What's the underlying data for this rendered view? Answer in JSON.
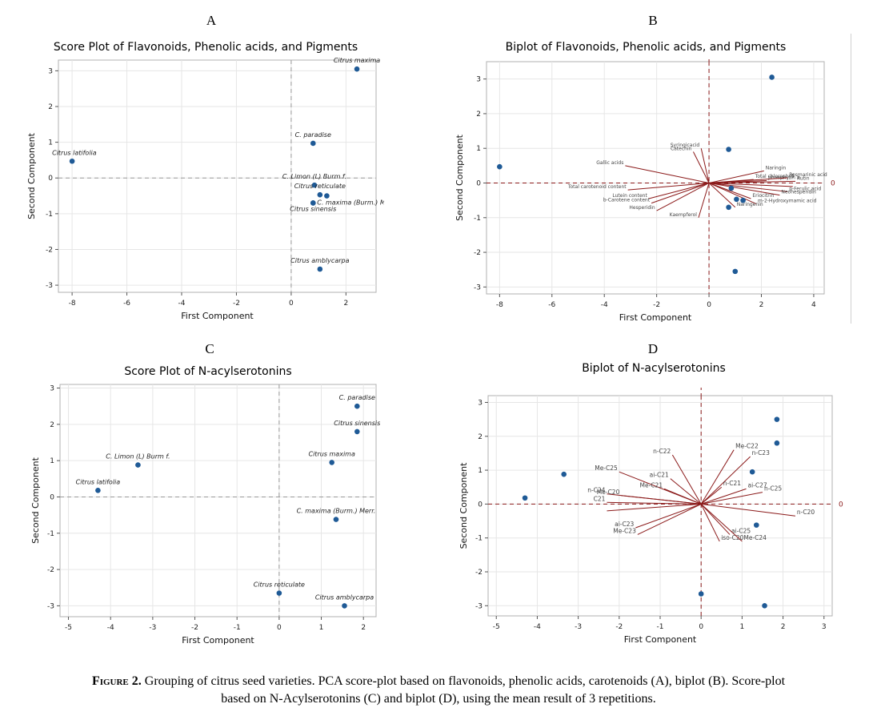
{
  "caption": {
    "label": "Figure 2.",
    "text_line1": " Grouping of citrus seed varieties. PCA score-plot based on flavonoids, phenolic acids, carotenoids (A), biplot (B). Score-plot",
    "text_line2": "based on N-Acylserotonins (C) and biplot (D), using the mean result of 3 repetitions."
  },
  "colors": {
    "point": "#1f5a96",
    "loading": "#8b1a1a",
    "refline": "#999999",
    "grid": "#e6e6e6"
  },
  "chart_data": [
    {
      "id": "A",
      "panel_letter": "A",
      "type": "scatter",
      "title": "Score Plot of Flavonoids, Phenolic acids, and Pigments",
      "xlabel": "First Component",
      "ylabel": "Second Component",
      "xlim": [
        -8.5,
        3.1
      ],
      "ylim": [
        -3.2,
        3.3
      ],
      "xticks": [
        -8,
        -6,
        -4,
        -2,
        0,
        2
      ],
      "yticks": [
        -3,
        -2,
        -1,
        0,
        1,
        2,
        3
      ],
      "grid": true,
      "refline_style": "dashed-gray",
      "points": [
        {
          "label": "Citrus maxima",
          "x": 2.4,
          "y": 3.05
        },
        {
          "label": "C. paradise",
          "x": 0.8,
          "y": 0.97
        },
        {
          "label": "Citrus latifolia",
          "x": -8.0,
          "y": 0.47
        },
        {
          "label": "C. Limon (L) Burm f.",
          "x": 0.85,
          "y": -0.2
        },
        {
          "label": "Citrus reticulate",
          "x": 1.05,
          "y": -0.47
        },
        {
          "label": "",
          "x": 1.3,
          "y": -0.5
        },
        {
          "label": "C. maxima (Burm.) Merr.",
          "x": 0.8,
          "y": -0.7
        },
        {
          "label": "Citrus sinensis",
          "x": 0.8,
          "y": -0.7
        },
        {
          "label": "Citrus amblycarpa",
          "x": 1.05,
          "y": -2.55
        }
      ]
    },
    {
      "id": "B",
      "panel_letter": "B",
      "type": "scatter",
      "title": "Biplot of Flavonoids, Phenolic acids, and Pigments",
      "xlabel": "First Component",
      "ylabel": "Second Component",
      "xlim": [
        -8.5,
        4.4
      ],
      "ylim": [
        -3.2,
        3.5
      ],
      "xticks": [
        -8,
        -6,
        -4,
        -2,
        0,
        2,
        4
      ],
      "yticks": [
        -3,
        -2,
        -1,
        0,
        1,
        2,
        3
      ],
      "grid": true,
      "refline_style": "dashed-red",
      "refline_label_x": "0",
      "refline_label_y": "0",
      "points": [
        {
          "x": 2.4,
          "y": 3.05
        },
        {
          "x": 0.75,
          "y": 0.97
        },
        {
          "x": -8.0,
          "y": 0.47
        },
        {
          "x": 0.85,
          "y": -0.15
        },
        {
          "x": 1.05,
          "y": -0.47
        },
        {
          "x": 1.3,
          "y": -0.5
        },
        {
          "x": 0.75,
          "y": -0.7
        },
        {
          "x": 1.0,
          "y": -2.55
        }
      ],
      "loadings": [
        {
          "label": "Syringicacid",
          "x": -0.3,
          "y": 1.0
        },
        {
          "label": "Catechin",
          "x": -0.6,
          "y": 0.9
        },
        {
          "label": "Gallic acids",
          "x": -3.2,
          "y": 0.5
        },
        {
          "label": "Naringin",
          "x": 2.1,
          "y": 0.35
        },
        {
          "label": "Total chlorophyll",
          "x": 1.7,
          "y": 0.1
        },
        {
          "label": "phaephytin a",
          "x": 2.2,
          "y": 0.07
        },
        {
          "label": "Rosmarinic acid",
          "x": 3.0,
          "y": 0.15
        },
        {
          "label": "Rutin",
          "x": 3.3,
          "y": 0.05
        },
        {
          "label": "",
          "x": 3.2,
          "y": -0.1
        },
        {
          "label": "p-Ferulic acid",
          "x": 3.0,
          "y": -0.25
        },
        {
          "label": "Neohesperidin",
          "x": 2.7,
          "y": -0.35
        },
        {
          "label": "Eriocitrin",
          "x": 1.6,
          "y": -0.45
        },
        {
          "label": "m-2-Hydroxymamic acid",
          "x": 1.8,
          "y": -0.6
        },
        {
          "label": "Naringenin",
          "x": 1.0,
          "y": -0.7
        },
        {
          "label": "Total carotenoid content",
          "x": -3.1,
          "y": -0.2
        },
        {
          "label": "Lutein content",
          "x": -2.3,
          "y": -0.45
        },
        {
          "label": "b-Carotene content",
          "x": -2.2,
          "y": -0.58
        },
        {
          "label": "Hesperidin",
          "x": -2.0,
          "y": -0.8
        },
        {
          "label": "Kaempferol",
          "x": -0.4,
          "y": -1.0
        }
      ]
    },
    {
      "id": "C",
      "panel_letter": "C",
      "type": "scatter",
      "title": "Score Plot of  N-acylserotonins",
      "xlabel": "First Component",
      "ylabel": "Second Component",
      "xlim": [
        -5.2,
        2.3
      ],
      "ylim": [
        -3.3,
        3.1
      ],
      "xticks": [
        -5,
        -4,
        -3,
        -2,
        -1,
        0,
        1,
        2
      ],
      "yticks": [
        -3,
        -2,
        -1,
        0,
        1,
        2,
        3
      ],
      "grid": true,
      "refline_style": "dashed-gray",
      "points": [
        {
          "label": "C. paradise",
          "x": 1.85,
          "y": 2.5
        },
        {
          "label": "Citrus sinensis",
          "x": 1.85,
          "y": 1.8
        },
        {
          "label": "Citrus maxima",
          "x": 1.25,
          "y": 0.95
        },
        {
          "label": "C. Limon (L) Burm f.",
          "x": -3.35,
          "y": 0.88
        },
        {
          "label": "Citrus latifolia",
          "x": -4.3,
          "y": 0.18
        },
        {
          "label": "C. maxima (Burm.) Merr.",
          "x": 1.35,
          "y": -0.62
        },
        {
          "label": "Citrus reticulate",
          "x": 0.0,
          "y": -2.65
        },
        {
          "label": "Citrus amblycarpa",
          "x": 1.55,
          "y": -3.0
        }
      ]
    },
    {
      "id": "D",
      "panel_letter": "D",
      "type": "scatter",
      "title": "Biplot of N-acylserotonins",
      "xlabel": "First Component",
      "ylabel": "Second Component",
      "xlim": [
        -5.2,
        3.2
      ],
      "ylim": [
        -3.3,
        3.2
      ],
      "xticks": [
        -5,
        -4,
        -3,
        -2,
        -1,
        0,
        1,
        2,
        3
      ],
      "yticks": [
        -3,
        -2,
        -1,
        0,
        1,
        2,
        3
      ],
      "grid": true,
      "refline_style": "dashed-red",
      "refline_label_x": "0",
      "refline_label_y": "0",
      "points": [
        {
          "x": 1.85,
          "y": 2.5
        },
        {
          "x": 1.85,
          "y": 1.8
        },
        {
          "x": 1.25,
          "y": 0.95
        },
        {
          "x": -3.35,
          "y": 0.88
        },
        {
          "x": -4.3,
          "y": 0.18
        },
        {
          "x": 1.35,
          "y": -0.62
        },
        {
          "x": 0.0,
          "y": -2.65
        },
        {
          "x": 1.55,
          "y": -3.0
        }
      ],
      "loadings": [
        {
          "label": "Me-C22",
          "x": 0.8,
          "y": 1.6
        },
        {
          "label": "n-C23",
          "x": 1.2,
          "y": 1.4
        },
        {
          "label": "n-C22",
          "x": -0.7,
          "y": 1.45
        },
        {
          "label": "Me-C25",
          "x": -2.0,
          "y": 0.95
        },
        {
          "label": "ai-C21",
          "x": -0.75,
          "y": 0.75
        },
        {
          "label": "Me-C21",
          "x": -0.9,
          "y": 0.45
        },
        {
          "label": "n-C21",
          "x": 0.5,
          "y": 0.5
        },
        {
          "label": "ai-C27",
          "x": 1.1,
          "y": 0.45
        },
        {
          "label": "n-C25",
          "x": 1.5,
          "y": 0.35
        },
        {
          "label": "n-C24",
          "x": -2.3,
          "y": 0.3
        },
        {
          "label": "Me-C20",
          "x": -1.95,
          "y": 0.25
        },
        {
          "label": "C21",
          "x": -2.3,
          "y": 0.05
        },
        {
          "label": "",
          "x": -2.3,
          "y": -0.2
        },
        {
          "label": "n-C20",
          "x": 2.3,
          "y": -0.35
        },
        {
          "label": "ai-C23",
          "x": -1.6,
          "y": -0.7
        },
        {
          "label": "Me-C23",
          "x": -1.55,
          "y": -0.9
        },
        {
          "label": "ai-C25",
          "x": 0.7,
          "y": -0.9
        },
        {
          "label": "iso-C20",
          "x": 0.45,
          "y": -1.1
        },
        {
          "label": "Me-C24",
          "x": 1.0,
          "y": -1.1
        }
      ]
    }
  ]
}
